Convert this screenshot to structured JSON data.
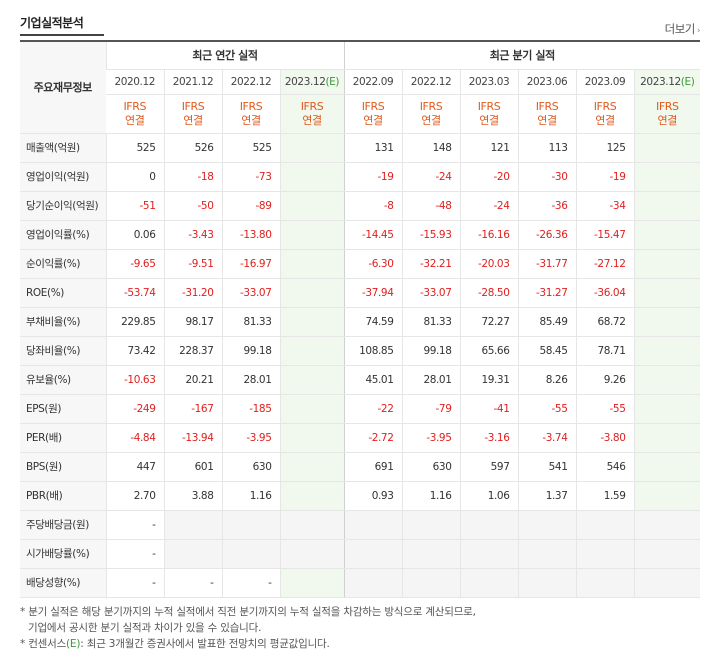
{
  "title": "기업실적분석",
  "more_link": "더보기",
  "row_header": "주요재무정보",
  "groups": {
    "annual": "최근 연간 실적",
    "quarterly": "최근 분기 실적"
  },
  "annual_periods": [
    "2020.12",
    "2021.12",
    "2022.12",
    "2023.12"
  ],
  "quarter_periods": [
    "2022.09",
    "2022.12",
    "2023.03",
    "2023.06",
    "2023.09",
    "2023.12"
  ],
  "estimate_mark": "(E)",
  "ifrs_line1": "IFRS",
  "ifrs_line2": "연결",
  "rows": [
    {
      "label": "매출액(억원)",
      "annual": [
        "525",
        "526",
        "525",
        ""
      ],
      "quarter": [
        "131",
        "148",
        "121",
        "113",
        "125",
        ""
      ]
    },
    {
      "label": "영업이익(억원)",
      "annual": [
        "0",
        "-18",
        "-73",
        ""
      ],
      "quarter": [
        "-19",
        "-24",
        "-20",
        "-30",
        "-19",
        ""
      ]
    },
    {
      "label": "당기순이익(억원)",
      "annual": [
        "-51",
        "-50",
        "-89",
        ""
      ],
      "quarter": [
        "-8",
        "-48",
        "-24",
        "-36",
        "-34",
        ""
      ]
    },
    {
      "label": "영업이익률(%)",
      "annual": [
        "0.06",
        "-3.43",
        "-13.80",
        ""
      ],
      "quarter": [
        "-14.45",
        "-15.93",
        "-16.16",
        "-26.36",
        "-15.47",
        ""
      ]
    },
    {
      "label": "순이익률(%)",
      "annual": [
        "-9.65",
        "-9.51",
        "-16.97",
        ""
      ],
      "quarter": [
        "-6.30",
        "-32.21",
        "-20.03",
        "-31.77",
        "-27.12",
        ""
      ]
    },
    {
      "label": "ROE(%)",
      "annual": [
        "-53.74",
        "-31.20",
        "-33.07",
        ""
      ],
      "quarter": [
        "-37.94",
        "-33.07",
        "-28.50",
        "-31.27",
        "-36.04",
        ""
      ]
    },
    {
      "label": "부채비율(%)",
      "annual": [
        "229.85",
        "98.17",
        "81.33",
        ""
      ],
      "quarter": [
        "74.59",
        "81.33",
        "72.27",
        "85.49",
        "68.72",
        ""
      ]
    },
    {
      "label": "당좌비율(%)",
      "annual": [
        "73.42",
        "228.37",
        "99.18",
        ""
      ],
      "quarter": [
        "108.85",
        "99.18",
        "65.66",
        "58.45",
        "78.71",
        ""
      ]
    },
    {
      "label": "유보율(%)",
      "annual": [
        "-10.63",
        "20.21",
        "28.01",
        ""
      ],
      "quarter": [
        "45.01",
        "28.01",
        "19.31",
        "8.26",
        "9.26",
        ""
      ]
    },
    {
      "label": "EPS(원)",
      "annual": [
        "-249",
        "-167",
        "-185",
        ""
      ],
      "quarter": [
        "-22",
        "-79",
        "-41",
        "-55",
        "-55",
        ""
      ]
    },
    {
      "label": "PER(배)",
      "annual": [
        "-4.84",
        "-13.94",
        "-3.95",
        ""
      ],
      "quarter": [
        "-2.72",
        "-3.95",
        "-3.16",
        "-3.74",
        "-3.80",
        ""
      ]
    },
    {
      "label": "BPS(원)",
      "annual": [
        "447",
        "601",
        "630",
        ""
      ],
      "quarter": [
        "691",
        "630",
        "597",
        "541",
        "546",
        ""
      ]
    },
    {
      "label": "PBR(배)",
      "annual": [
        "2.70",
        "3.88",
        "1.16",
        ""
      ],
      "quarter": [
        "0.93",
        "1.16",
        "1.06",
        "1.37",
        "1.59",
        ""
      ]
    },
    {
      "label": "주당배당금(원)",
      "annual": [
        "-",
        null,
        null,
        null
      ],
      "quarter": [
        null,
        null,
        null,
        null,
        null,
        null
      ]
    },
    {
      "label": "시가배당률(%)",
      "annual": [
        "-",
        null,
        null,
        null
      ],
      "quarter": [
        null,
        null,
        null,
        null,
        null,
        null
      ]
    },
    {
      "label": "배당성향(%)",
      "annual": [
        "-",
        "-",
        "-",
        ""
      ],
      "quarter": [
        null,
        null,
        null,
        null,
        null,
        null
      ]
    }
  ],
  "notes": {
    "line1": "* 분기 실적은 해당 분기까지의 누적 실적에서 직전 분기까지의 누적 실적을 차감하는 방식으로 계산되므로,",
    "line2": "기업에서 공시한 분기 실적과 차이가 있을 수 있습니다.",
    "line3_pre": "* 컨센서스",
    "line3_e": "(E)",
    "line3_post": ": 최근 3개월간 증권사에서 발표한 전망치의 평균값입니다."
  },
  "colors": {
    "negative": "#e02020",
    "ifrs": "#e05a1e",
    "estimate_bg": "#f1f8ee",
    "estimate_mark": "#3a9a3a"
  }
}
